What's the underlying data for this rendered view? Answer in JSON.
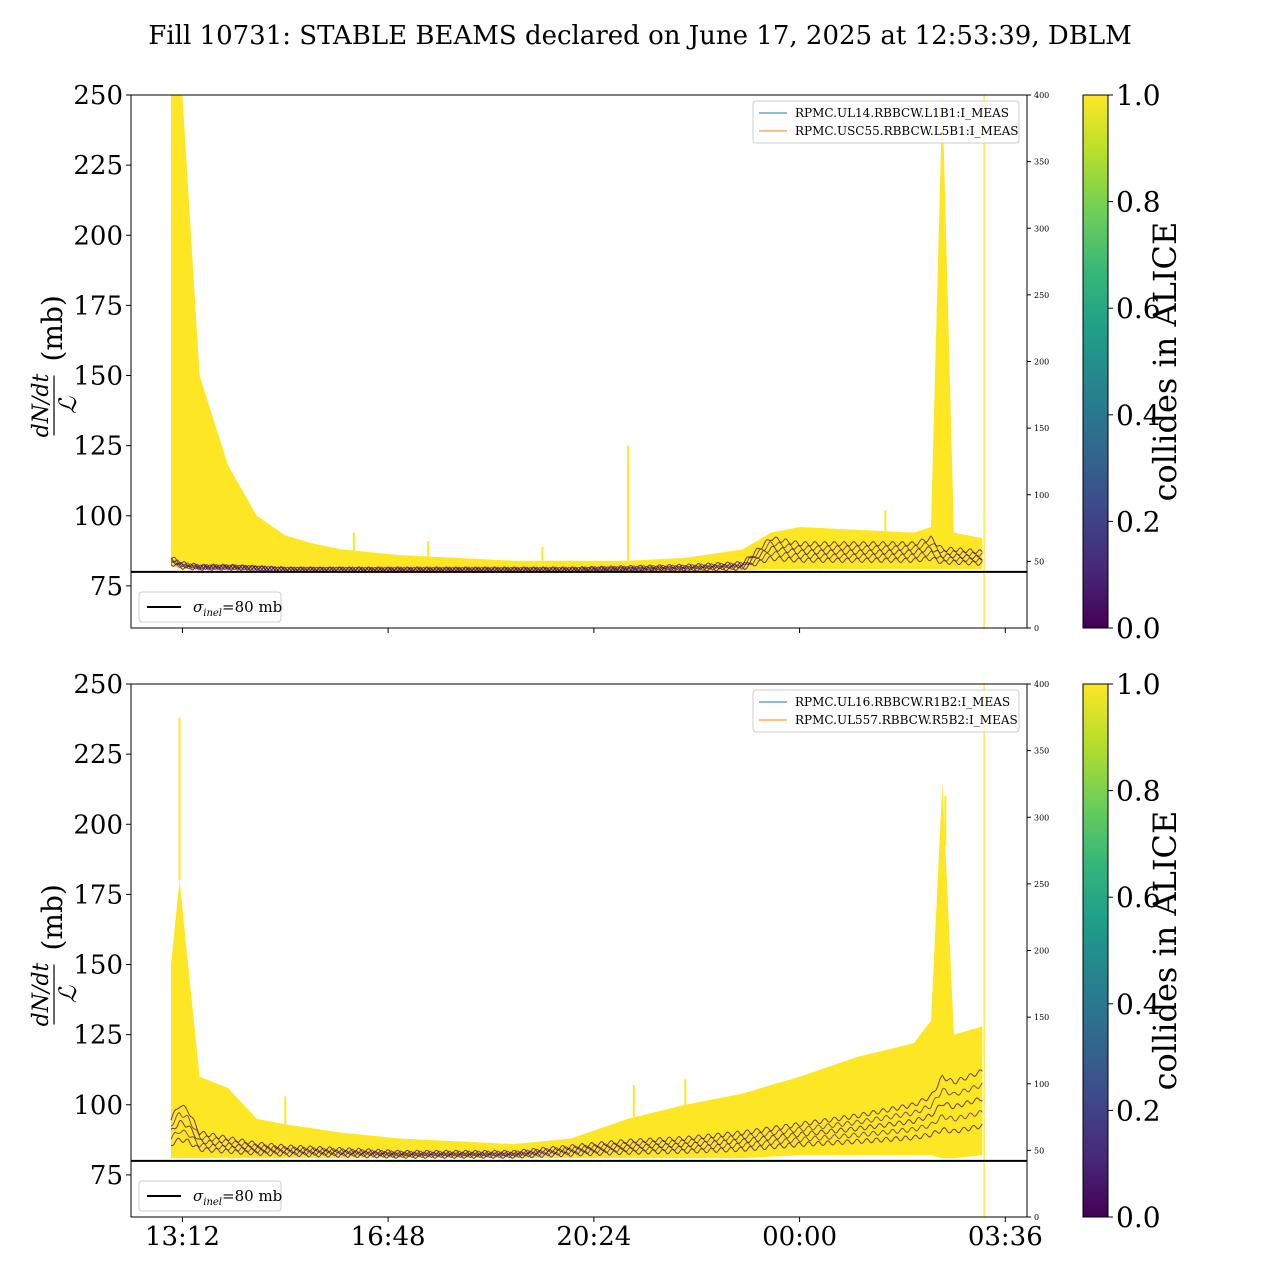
{
  "figure": {
    "title": "Fill 10731: STABLE BEAMS declared on June 17, 2025 at 12:53:39, DBLM"
  },
  "colors": {
    "viridis": [
      "#440154",
      "#482878",
      "#3e4989",
      "#31688e",
      "#26828e",
      "#1f9e89",
      "#35b779",
      "#6ece58",
      "#b5de2b",
      "#fde725"
    ],
    "dark_purple": "#440154",
    "yellow": "#fde725",
    "legend_line_1": "#1f77b4",
    "legend_line_2": "#ff7f0e",
    "threshold_line": "#000000"
  },
  "chart_data": [
    {
      "type": "line",
      "panel": "top",
      "ylabel": "dN/dt / ℒ (mb)",
      "ylabel_parts": {
        "numerator": "dN/dt",
        "denominator": "ℒ",
        "unit": "(mb)"
      },
      "ylim": [
        60,
        250
      ],
      "yticks": [
        "75",
        "100",
        "125",
        "150",
        "175",
        "200",
        "225",
        "250"
      ],
      "y2lim": [
        0,
        400
      ],
      "y2ticks": [
        "0",
        "50",
        "100",
        "150",
        "200",
        "250",
        "300",
        "350",
        "400"
      ],
      "xticks": [
        "13:12",
        "16:48",
        "20:24",
        "00:00",
        "03:36"
      ],
      "x_hours_axis": [
        12.3,
        27.98
      ],
      "x_tick_hours": [
        13.2,
        16.8,
        20.4,
        24.0,
        27.6
      ],
      "grid": false,
      "legend_topright": [
        "RPMC.UL14.RBBCW.L1B1:I_MEAS",
        "RPMC.USC55.RBBCW.L5B1:I_MEAS"
      ],
      "legend_bottomleft": {
        "symbol": "σ",
        "subscript": "inel",
        "value_text": "=80 mb"
      },
      "threshold": 80,
      "vline_hour": 27.23,
      "band": {
        "x": [
          13.0,
          13.2,
          13.5,
          14.0,
          14.5,
          15.0,
          15.5,
          16.0,
          17.0,
          18.0,
          19.0,
          20.0,
          21.0,
          22.0,
          23.0,
          23.5,
          24.0,
          25.0,
          26.0,
          26.3,
          26.5,
          26.7,
          27.2
        ],
        "upper": [
          250,
          250,
          150,
          118,
          100,
          93,
          90,
          88,
          86,
          85,
          84,
          84,
          84,
          85,
          88,
          94,
          96,
          95,
          94,
          96,
          250,
          94,
          92
        ],
        "lower": [
          82,
          81,
          81,
          81,
          81,
          80.5,
          80.5,
          80.5,
          80.3,
          80.3,
          80.3,
          80.3,
          80.3,
          80.3,
          80.5,
          81,
          81,
          81,
          81,
          81,
          81,
          81,
          81
        ],
        "dark_line": [
          85,
          83,
          82,
          82,
          81.5,
          81,
          81,
          81,
          81,
          81,
          81,
          81,
          81.5,
          82,
          83,
          92,
          90,
          90,
          90,
          92,
          88,
          88,
          87
        ]
      },
      "spikes": [
        {
          "hour": 21.0,
          "value": 125
        },
        {
          "hour": 16.2,
          "value": 94
        },
        {
          "hour": 17.5,
          "value": 91
        },
        {
          "hour": 19.5,
          "value": 89
        },
        {
          "hour": 25.5,
          "value": 102
        }
      ]
    },
    {
      "type": "line",
      "panel": "bottom",
      "ylabel": "dN/dt / ℒ (mb)",
      "ylabel_parts": {
        "numerator": "dN/dt",
        "denominator": "ℒ",
        "unit": "(mb)"
      },
      "ylim": [
        60,
        250
      ],
      "yticks": [
        "75",
        "100",
        "125",
        "150",
        "175",
        "200",
        "225",
        "250"
      ],
      "y2lim": [
        0,
        400
      ],
      "y2ticks": [
        "0",
        "50",
        "100",
        "150",
        "200",
        "250",
        "300",
        "350",
        "400"
      ],
      "xticks": [
        "13:12",
        "16:48",
        "20:24",
        "00:00",
        "03:36"
      ],
      "x_hours_axis": [
        12.3,
        27.98
      ],
      "x_tick_hours": [
        13.2,
        16.8,
        20.4,
        24.0,
        27.6
      ],
      "grid": false,
      "legend_topright": [
        "RPMC.UL16.RBBCW.R1B2:I_MEAS",
        "RPMC.UL557.RBBCW.R5B2:I_MEAS"
      ],
      "legend_bottomleft": {
        "symbol": "σ",
        "subscript": "inel",
        "value_text": "=80 mb"
      },
      "threshold": 80,
      "vline_hour": 27.23,
      "band": {
        "x": [
          13.0,
          13.15,
          13.3,
          13.5,
          14.0,
          14.5,
          15.0,
          16.0,
          17.0,
          18.0,
          19.0,
          20.0,
          21.0,
          22.0,
          23.0,
          24.0,
          25.0,
          26.0,
          26.3,
          26.5,
          26.7,
          27.2
        ],
        "upper": [
          150,
          180,
          150,
          110,
          106,
          95,
          93,
          90,
          88,
          87,
          86,
          88,
          95,
          100,
          104,
          110,
          117,
          122,
          130,
          215,
          125,
          128
        ],
        "lower": [
          81,
          81,
          81,
          81,
          81,
          81,
          81,
          81,
          81,
          81,
          81,
          81,
          81,
          81,
          81,
          82,
          82,
          82,
          82,
          81,
          81,
          82
        ],
        "dark_line": [
          95,
          100,
          98,
          90,
          88,
          86,
          85,
          84,
          83,
          83,
          83,
          85,
          87,
          88,
          90,
          93,
          96,
          100,
          103,
          110,
          108,
          112
        ]
      },
      "spikes": [
        {
          "hour": 13.15,
          "value": 238
        },
        {
          "hour": 21.1,
          "value": 107
        },
        {
          "hour": 22.0,
          "value": 109
        },
        {
          "hour": 15.0,
          "value": 103
        },
        {
          "hour": 26.55,
          "value": 210
        }
      ]
    }
  ],
  "colorbars": [
    {
      "label": "collides in ALICE",
      "ticks": [
        "0.0",
        "0.2",
        "0.4",
        "0.6",
        "0.8",
        "1.0"
      ],
      "range": [
        0,
        1
      ]
    },
    {
      "label": "collides in ALICE",
      "ticks": [
        "0.0",
        "0.2",
        "0.4",
        "0.6",
        "0.8",
        "1.0"
      ],
      "range": [
        0,
        1
      ]
    }
  ]
}
